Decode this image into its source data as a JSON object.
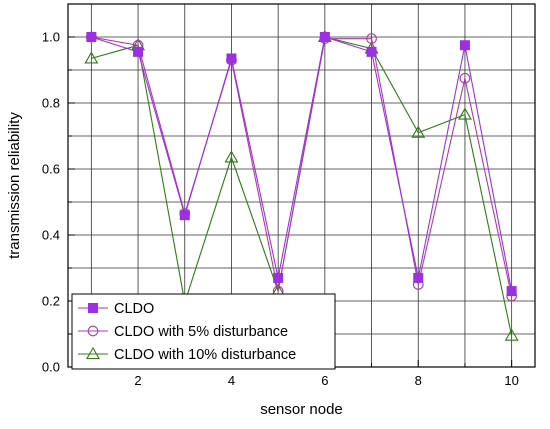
{
  "chart_data": {
    "type": "line",
    "title": "",
    "xlabel": "sensor node",
    "ylabel": "transmission reliability",
    "x": [
      1,
      2,
      3,
      4,
      5,
      6,
      7,
      8,
      9,
      10
    ],
    "xlim": [
      0.5,
      10.5
    ],
    "ylim": [
      0.0,
      1.1
    ],
    "x_ticks": [
      2,
      4,
      6,
      8,
      10
    ],
    "y_ticks": [
      0.0,
      0.2,
      0.4,
      0.6,
      0.8,
      1.0
    ],
    "grid": true,
    "legend_position": "bottom-left",
    "series": [
      {
        "name": "CLDO",
        "color": "#9b30e0",
        "marker": "filled-square",
        "values": [
          1.0,
          0.955,
          0.46,
          0.935,
          0.27,
          1.0,
          0.955,
          0.27,
          0.975,
          0.23
        ]
      },
      {
        "name": "CLDO with 5% disturbance",
        "color": "#b03aa8",
        "marker": "open-circle",
        "values": [
          1.0,
          0.975,
          0.465,
          0.93,
          0.23,
          0.995,
          0.995,
          0.25,
          0.875,
          0.215
        ]
      },
      {
        "name": "CLDO with 10% disturbance",
        "color": "#2e7d14",
        "marker": "open-triangle",
        "values": [
          0.935,
          0.975,
          0.195,
          0.635,
          0.23,
          1.0,
          0.965,
          0.71,
          0.765,
          0.095
        ]
      }
    ]
  }
}
